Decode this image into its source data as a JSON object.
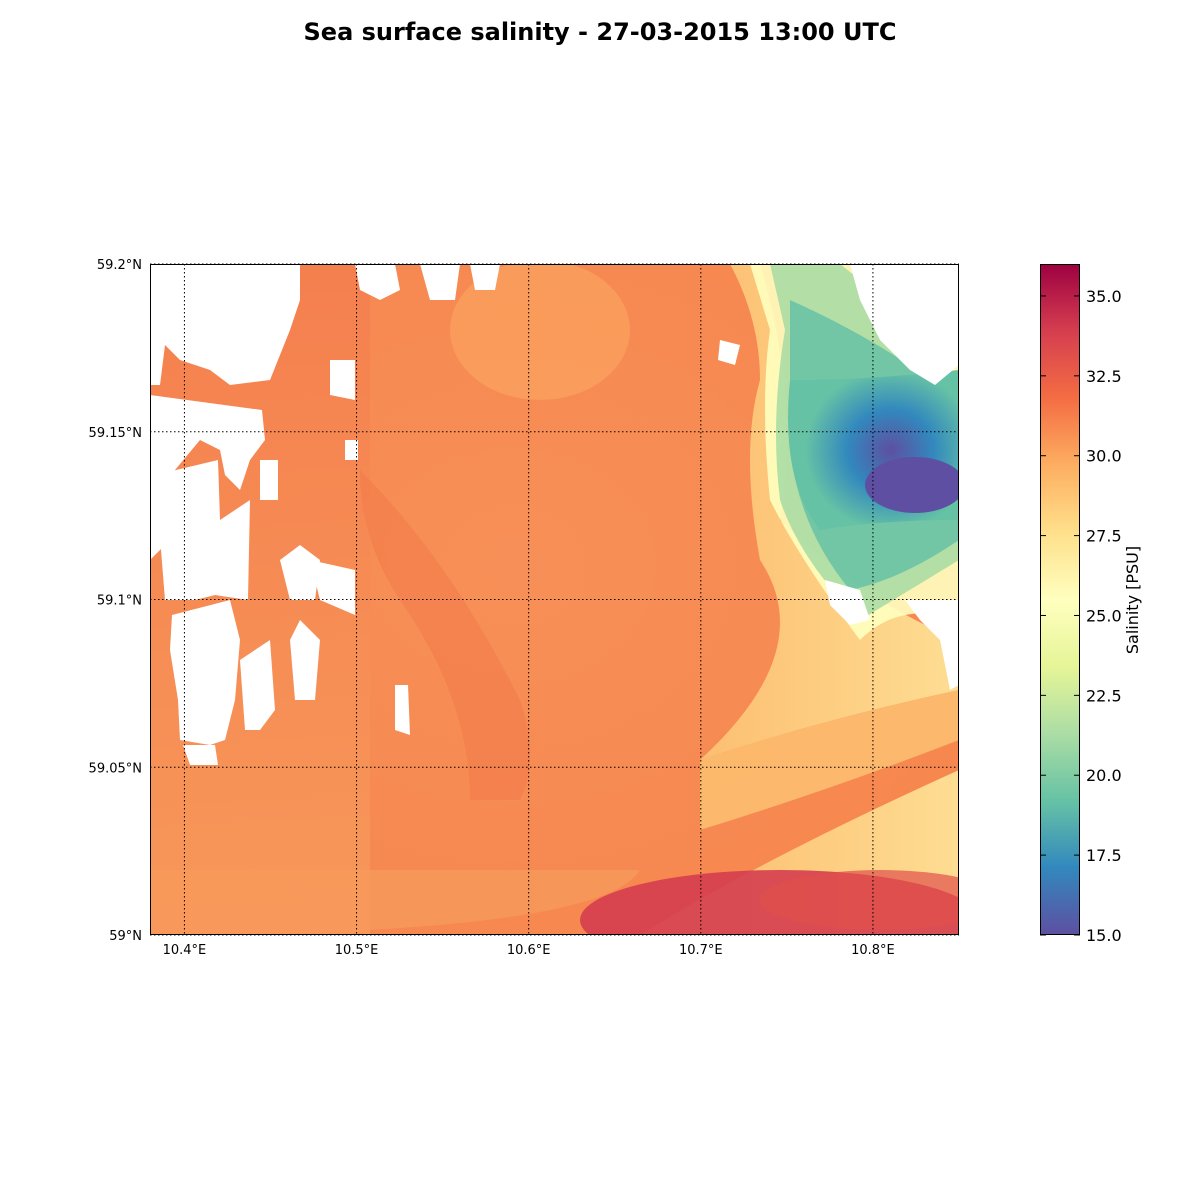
{
  "title": "Sea surface salinity - 27-03-2015 13:00 UTC",
  "map": {
    "lon_range": [
      10.38,
      10.85
    ],
    "lat_range": [
      59.0,
      59.2
    ],
    "lon_ticks": [
      {
        "value": 10.4,
        "label": "10.4°E"
      },
      {
        "value": 10.5,
        "label": "10.5°E"
      },
      {
        "value": 10.6,
        "label": "10.6°E"
      },
      {
        "value": 10.7,
        "label": "10.7°E"
      },
      {
        "value": 10.8,
        "label": "10.8°E"
      }
    ],
    "lat_ticks": [
      {
        "value": 59.0,
        "label": "59°N"
      },
      {
        "value": 59.05,
        "label": "59.05°N"
      },
      {
        "value": 59.1,
        "label": "59.1°N"
      },
      {
        "value": 59.15,
        "label": "59.15°N"
      },
      {
        "value": 59.2,
        "label": "59.2°N"
      }
    ],
    "gridlines": true,
    "land_color": "#ffffff",
    "colormap": "Spectral_r"
  },
  "colorbar": {
    "label": "Salinity [PSU]",
    "vmin": 15.0,
    "vmax": 36.0,
    "ticks": [
      {
        "value": 15.0,
        "label": "15.0"
      },
      {
        "value": 17.5,
        "label": "17.5"
      },
      {
        "value": 20.0,
        "label": "20.0"
      },
      {
        "value": 22.5,
        "label": "22.5"
      },
      {
        "value": 25.0,
        "label": "25.0"
      },
      {
        "value": 27.5,
        "label": "27.5"
      },
      {
        "value": 30.0,
        "label": "30.0"
      },
      {
        "value": 32.5,
        "label": "32.5"
      },
      {
        "value": 35.0,
        "label": "35.0"
      }
    ],
    "stops": [
      "#5e4fa2",
      "#3288bd",
      "#66c2a5",
      "#abdda4",
      "#e6f598",
      "#ffffbf",
      "#fee08b",
      "#fdae61",
      "#f46d43",
      "#d53e4f",
      "#9e0142"
    ]
  }
}
